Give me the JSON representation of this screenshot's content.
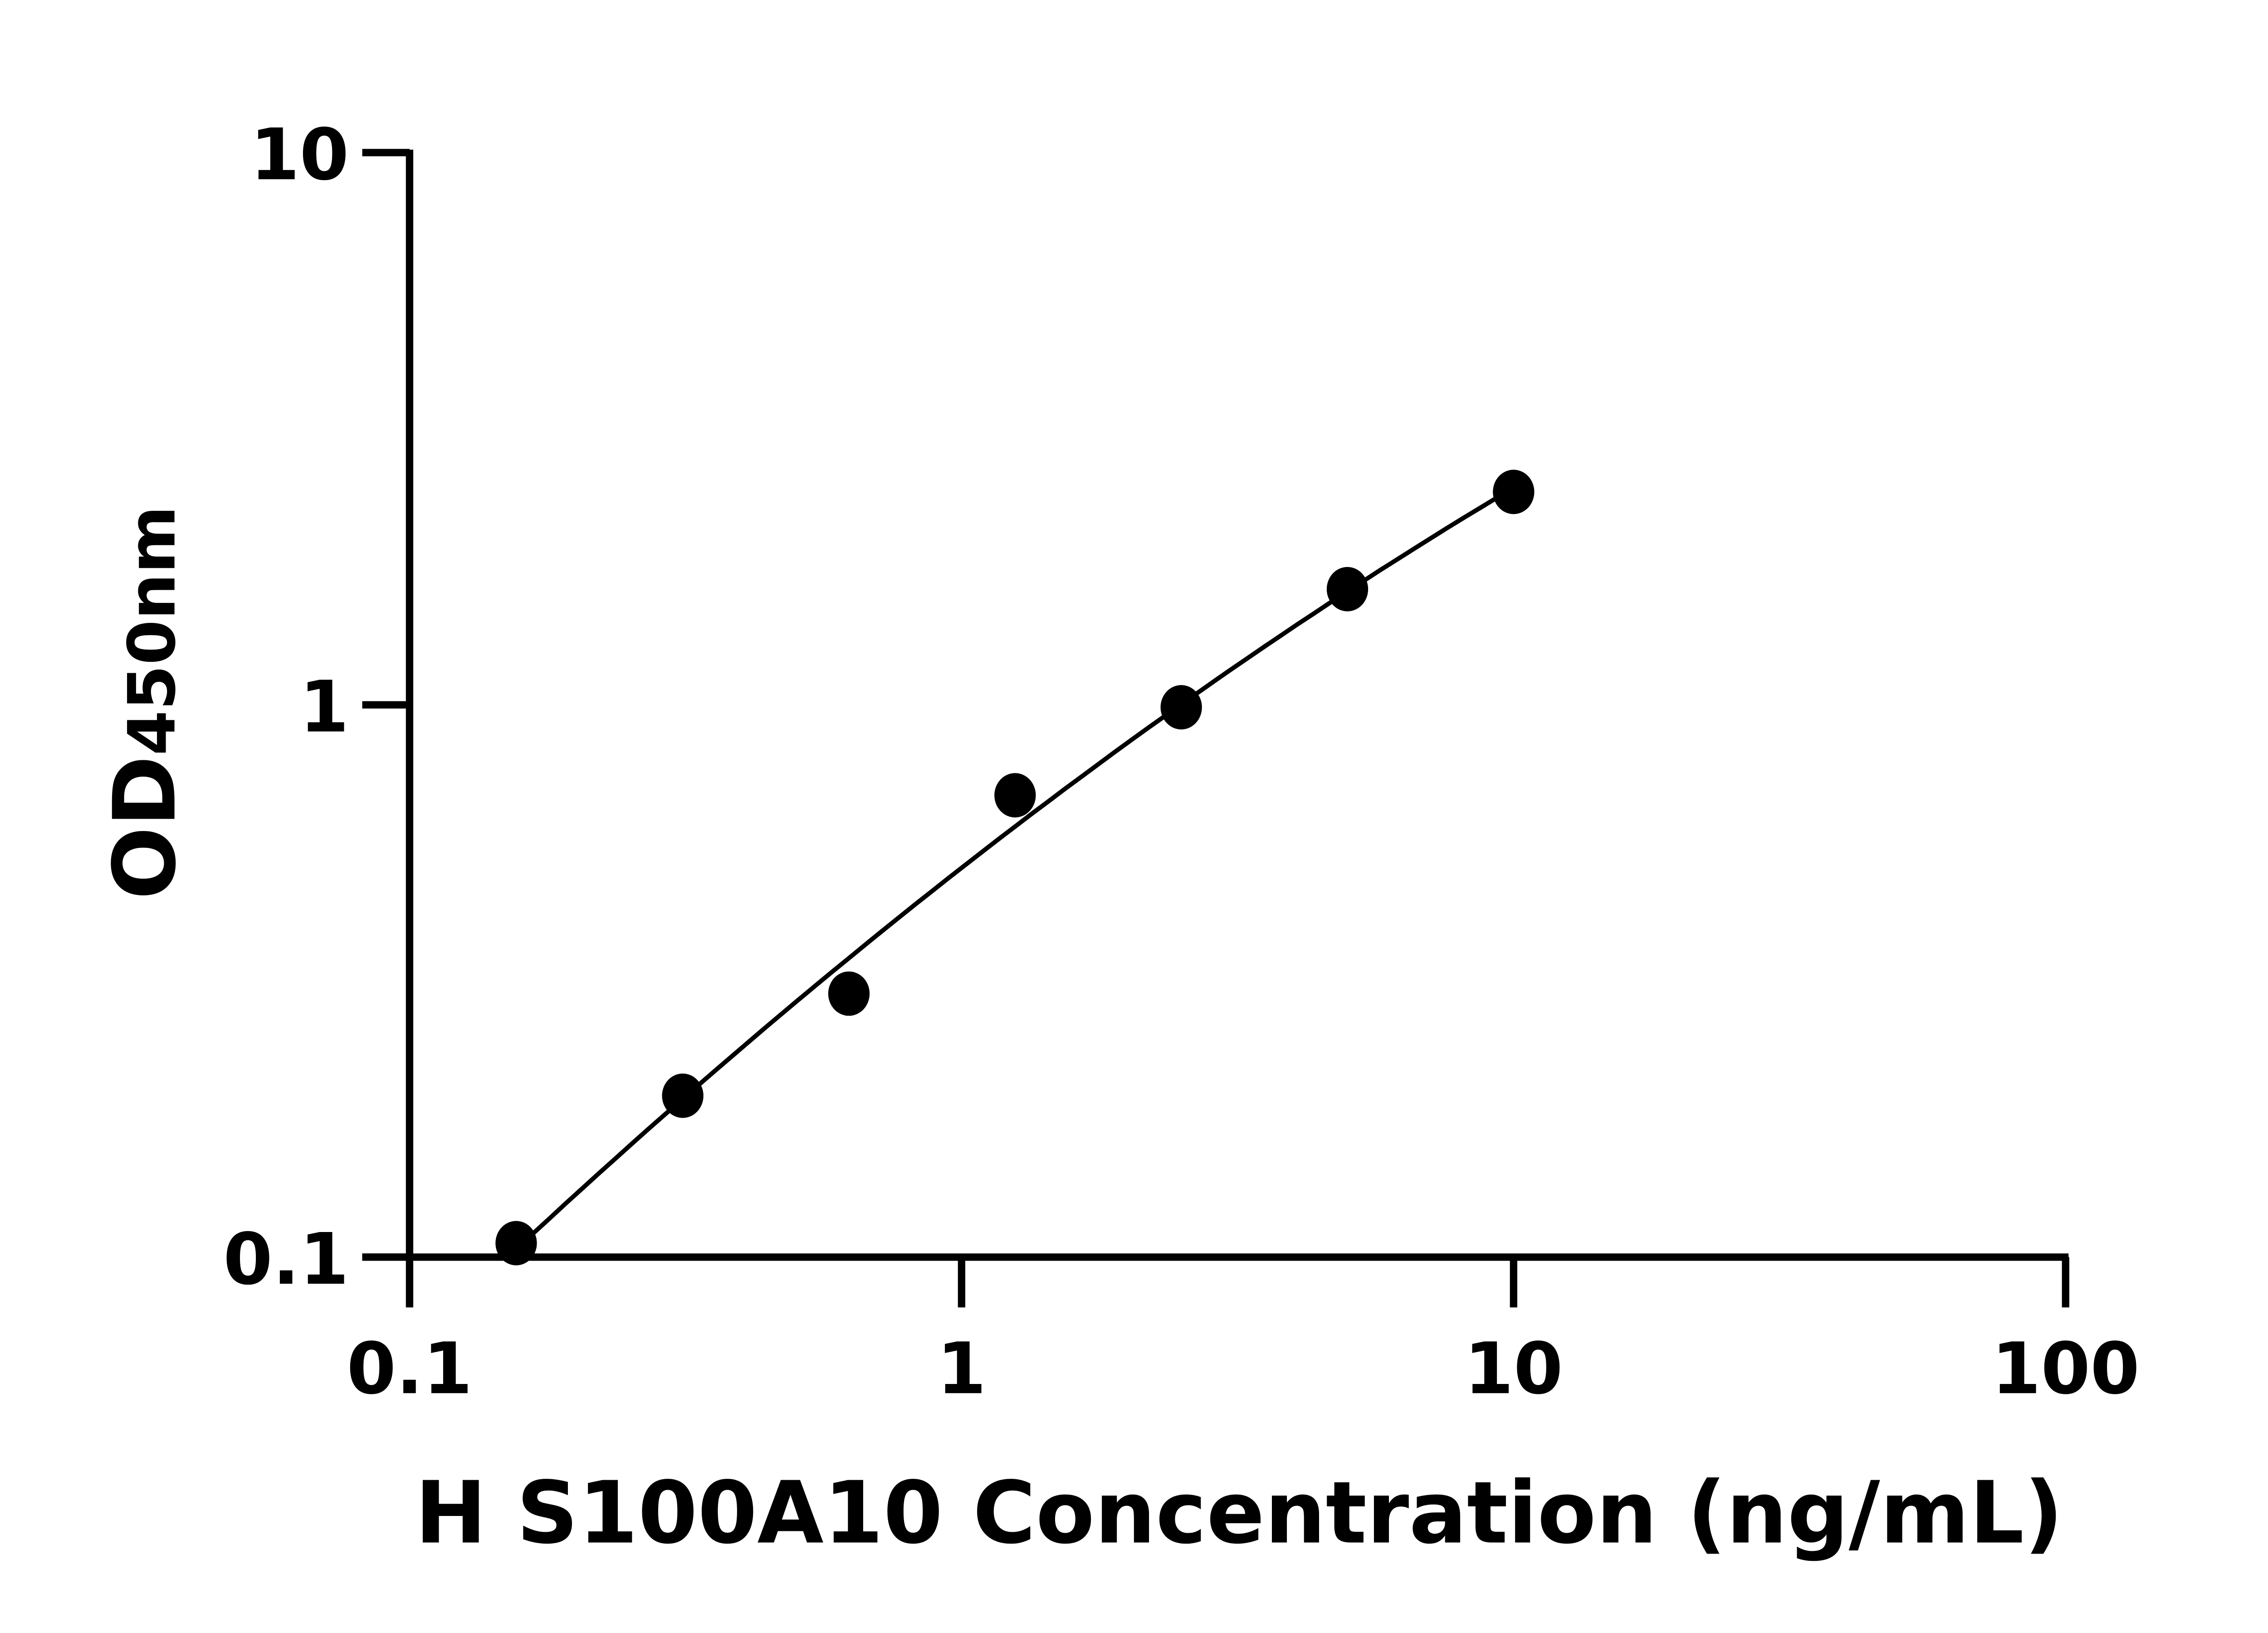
{
  "chart_data": {
    "type": "scatter",
    "title": "",
    "xlabel": "H S100A10 Concentration (ng/mL)",
    "ylabel_main": "OD",
    "ylabel_sub": "450nm",
    "x_scale": "log",
    "y_scale": "log",
    "xlim": [
      0.1,
      100
    ],
    "ylim": [
      0.1,
      10
    ],
    "x_ticks": [
      "0.1",
      "1",
      "10",
      "100"
    ],
    "y_ticks": [
      "0.1",
      "1",
      "10"
    ],
    "grid": false,
    "fit_line": true,
    "marker_color": "#000000",
    "x": [
      0.156,
      0.3125,
      0.625,
      1.25,
      2.5,
      5,
      10
    ],
    "y": [
      0.106,
      0.196,
      0.3,
      0.686,
      0.99,
      1.62,
      2.43
    ]
  }
}
